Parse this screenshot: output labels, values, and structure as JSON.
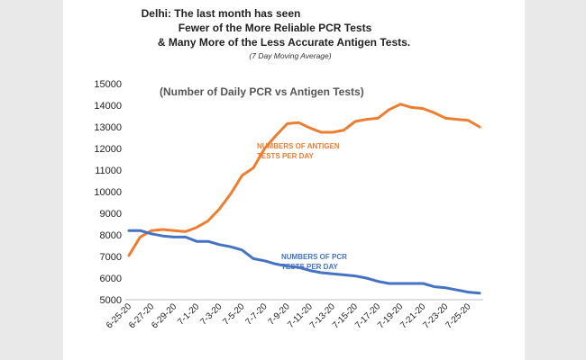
{
  "chart_data": {
    "type": "line",
    "title_lines": [
      "Delhi: The last month has seen",
      "Fewer of the More Reliable PCR Tests",
      "& Many More of the Less Accurate Antigen Tests."
    ],
    "subtitle": "(7 Day Moving Average)",
    "inner_title": "(Number of Daily PCR vs Antigen Tests)",
    "ylim": [
      5000,
      15000
    ],
    "yticks": [
      5000,
      6000,
      7000,
      8000,
      9000,
      10000,
      11000,
      12000,
      13000,
      14000,
      15000
    ],
    "x": [
      "6-25-20",
      "6-26-20",
      "6-27-20",
      "6-28-20",
      "6-29-20",
      "6-30-20",
      "7-1-20",
      "7-2-20",
      "7-3-20",
      "7-4-20",
      "7-5-20",
      "7-6-20",
      "7-7-20",
      "7-8-20",
      "7-9-20",
      "7-10-20",
      "7-11-20",
      "7-12-20",
      "7-13-20",
      "7-14-20",
      "7-15-20",
      "7-16-20",
      "7-17-20",
      "7-18-20",
      "7-19-20",
      "7-20-20",
      "7-21-20",
      "7-22-20",
      "7-23-20",
      "7-24-20",
      "7-25-20",
      "7-26-20"
    ],
    "x_tick_labels_shown": [
      "6-25-20",
      "6-27-20",
      "6-29-20",
      "7-1-20",
      "7-3-20",
      "7-5-20",
      "7-7-20",
      "7-9-20",
      "7-11-20",
      "7-13-20",
      "7-15-20",
      "7-17-20",
      "7-19-20",
      "7-21-20",
      "7-23-20",
      "7-25-20"
    ],
    "grid": false,
    "legend": "none",
    "series": [
      {
        "color": "#ED7D31",
        "annotation_lines": [
          "NUMBERS OF ANTIGEN",
          "TESTS PER DAY"
        ],
        "values": [
          7050,
          7900,
          8200,
          8250,
          8200,
          8150,
          8350,
          8650,
          9200,
          9900,
          10750,
          11100,
          12000,
          12600,
          13150,
          13200,
          12950,
          12750,
          12750,
          12850,
          13250,
          13350,
          13400,
          13800,
          14050,
          13900,
          13850,
          13650,
          13400,
          13350,
          13300,
          13000
        ]
      },
      {
        "color": "#4472C4",
        "annotation_lines": [
          "NUMBERS OF PCR",
          "TESTS PER DAY"
        ],
        "values": [
          8200,
          8200,
          8050,
          7950,
          7900,
          7900,
          7700,
          7700,
          7550,
          7450,
          7300,
          6900,
          6800,
          6650,
          6550,
          6500,
          6350,
          6250,
          6200,
          6150,
          6100,
          6000,
          5850,
          5750,
          5750,
          5750,
          5750,
          5600,
          5550,
          5450,
          5350,
          5300
        ]
      }
    ]
  }
}
